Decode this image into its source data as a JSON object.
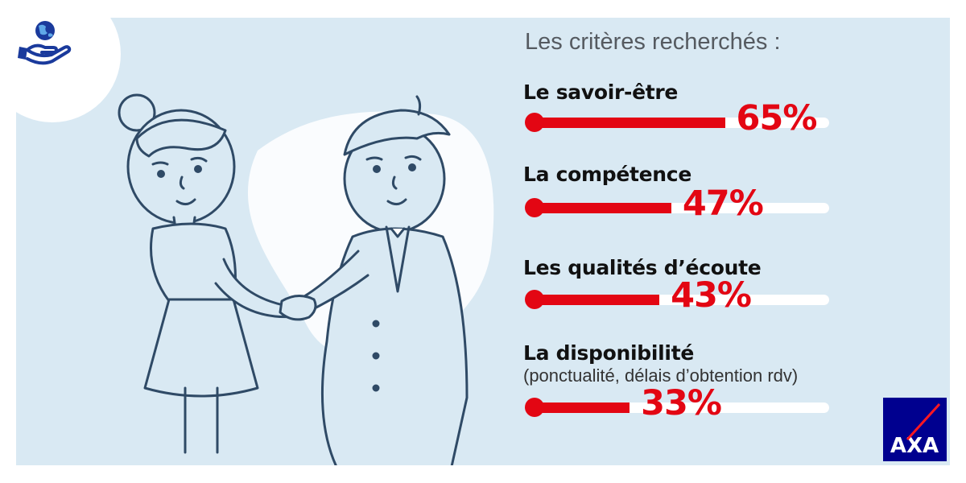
{
  "title": "Les critères recherchés :",
  "colors": {
    "background": "#d9e9f3",
    "accent": "#e30613",
    "track": "#ffffff",
    "brand": "#00008f",
    "ink": "#2f4a66"
  },
  "icons": {
    "top_left": "globe-in-hand-icon",
    "brand": "axa-logo"
  },
  "brand_text": "AXA",
  "chart_data": {
    "type": "bar",
    "orientation": "horizontal",
    "title": "Les critères recherchés :",
    "xlim": [
      0,
      100
    ],
    "unit": "%",
    "categories": [
      "Le savoir-être",
      "La compétence",
      "Les qualités d’écoute",
      "La disponibilité"
    ],
    "subtitles": [
      "",
      "",
      "",
      "(ponctualité, délais d’obtention rdv)"
    ],
    "values": [
      65,
      47,
      43,
      33
    ],
    "value_labels": [
      "65%",
      "47%",
      "43%",
      "33%"
    ]
  }
}
